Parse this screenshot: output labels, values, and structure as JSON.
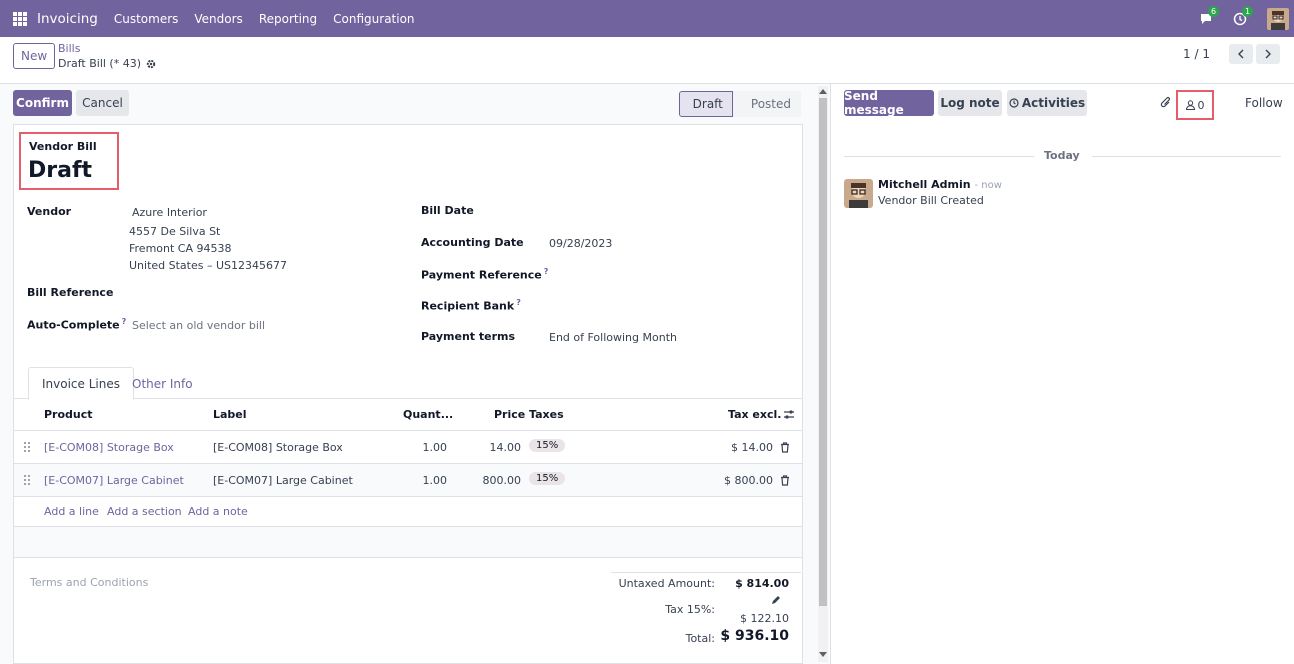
{
  "navbar": {
    "brand": "Invoicing",
    "menu": [
      "Customers",
      "Vendors",
      "Reporting",
      "Configuration"
    ],
    "messages_count": "6",
    "activities_count": "1"
  },
  "control_panel": {
    "new_label": "New",
    "breadcrumb_parent": "Bills",
    "breadcrumb_current": "Draft Bill (* 43)",
    "pager": "1 / 1"
  },
  "form": {
    "confirm_label": "Confirm",
    "cancel_label": "Cancel",
    "status": {
      "active": "Draft",
      "inactive": "Posted"
    },
    "doc_type": "Vendor Bill",
    "doc_title": "Draft",
    "fields": {
      "vendor_label": "Vendor",
      "vendor_name": "Azure Interior",
      "vendor_address_1": "4557 De Silva St",
      "vendor_address_2": "Fremont CA 94538",
      "vendor_address_3": "United States – US12345677",
      "bill_reference_label": "Bill Reference",
      "auto_complete_label": "Auto-Complete",
      "auto_complete_placeholder": "Select an old vendor bill",
      "bill_date_label": "Bill Date",
      "accounting_date_label": "Accounting Date",
      "accounting_date_value": "09/28/2023",
      "payment_reference_label": "Payment Reference",
      "recipient_bank_label": "Recipient Bank",
      "payment_terms_label": "Payment terms",
      "payment_terms_value": "End of Following Month",
      "help_mark": "?"
    },
    "tabs": [
      "Invoice Lines",
      "Other Info"
    ],
    "table": {
      "headers": {
        "product": "Product",
        "label": "Label",
        "quantity": "Quant...",
        "price": "Price",
        "taxes": "Taxes",
        "tax_excl": "Tax excl."
      },
      "rows": [
        {
          "product": "[E-COM08] Storage Box",
          "label": "[E-COM08] Storage Box",
          "quantity": "1.00",
          "price": "14.00",
          "tax": "15%",
          "subtotal": "$ 14.00"
        },
        {
          "product": "[E-COM07] Large Cabinet",
          "label": "[E-COM07] Large Cabinet",
          "quantity": "1.00",
          "price": "800.00",
          "tax": "15%",
          "subtotal": "$ 800.00"
        }
      ],
      "add_line": "Add a line",
      "add_section": "Add a section",
      "add_note": "Add a note"
    },
    "terms_placeholder": "Terms and Conditions",
    "totals": {
      "untaxed_label": "Untaxed Amount:",
      "untaxed_value": "$ 814.00",
      "tax_label": "Tax 15%:",
      "tax_value": "$ 122.10",
      "total_label": "Total:",
      "total_value": "$ 936.10"
    }
  },
  "chatter": {
    "send_message": "Send message",
    "log_note": "Log note",
    "activities": "Activities",
    "followers_count": "0",
    "follow": "Follow",
    "today": "Today",
    "message": {
      "author": "Mitchell Admin",
      "time": "- now",
      "body": "Vendor Bill Created"
    }
  },
  "colors": {
    "primary": "#71639e",
    "highlight": "#e35d6a"
  }
}
